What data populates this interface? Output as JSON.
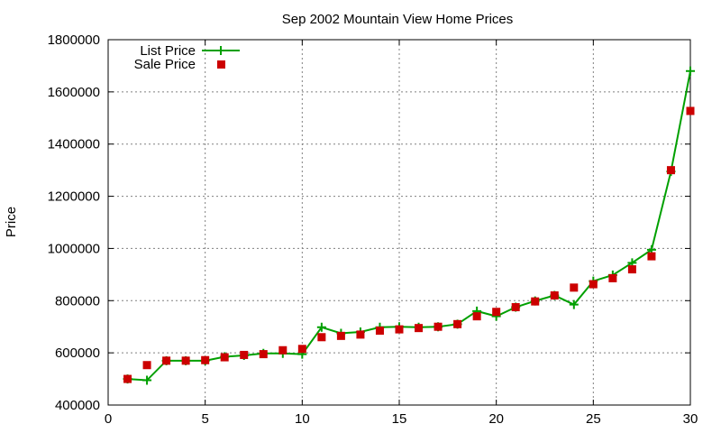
{
  "chart_data": {
    "type": "line",
    "title": "Sep 2002 Mountain View Home Prices",
    "xlabel": "",
    "ylabel": "Price",
    "xlim": [
      0,
      30
    ],
    "ylim": [
      400000,
      1800000
    ],
    "x_ticks": [
      0,
      5,
      10,
      15,
      20,
      25,
      30
    ],
    "y_ticks": [
      400000,
      600000,
      800000,
      1000000,
      1200000,
      1400000,
      1600000,
      1800000
    ],
    "grid": true,
    "legend_position": "top-left",
    "series": [
      {
        "name": "List Price",
        "style": "line-with-plus-markers",
        "color": "#00a000",
        "x": [
          1,
          2,
          3,
          4,
          5,
          6,
          7,
          8,
          9,
          10,
          11,
          12,
          13,
          14,
          15,
          16,
          17,
          18,
          19,
          20,
          21,
          22,
          23,
          24,
          25,
          26,
          27,
          28,
          29,
          30
        ],
        "values": [
          500000,
          495000,
          570000,
          570000,
          570000,
          585000,
          590000,
          598000,
          598000,
          595000,
          698000,
          675000,
          680000,
          698000,
          700000,
          698000,
          700000,
          710000,
          760000,
          740000,
          775000,
          799000,
          820000,
          785000,
          875000,
          898000,
          945000,
          995000,
          1295000,
          1680000
        ]
      },
      {
        "name": "Sale Price",
        "style": "square-markers",
        "color": "#cc0000",
        "x": [
          1,
          2,
          3,
          4,
          5,
          6,
          7,
          8,
          9,
          10,
          11,
          12,
          13,
          14,
          15,
          16,
          17,
          18,
          19,
          20,
          21,
          22,
          23,
          24,
          25,
          26,
          27,
          28,
          29,
          30
        ],
        "values": [
          500000,
          553000,
          570000,
          570000,
          572000,
          583000,
          592000,
          595000,
          610000,
          615000,
          660000,
          665000,
          670000,
          685000,
          690000,
          695000,
          700000,
          710000,
          740000,
          757000,
          775000,
          797000,
          820000,
          850000,
          863000,
          886000,
          920000,
          970000,
          1300000,
          1527000
        ]
      }
    ]
  }
}
